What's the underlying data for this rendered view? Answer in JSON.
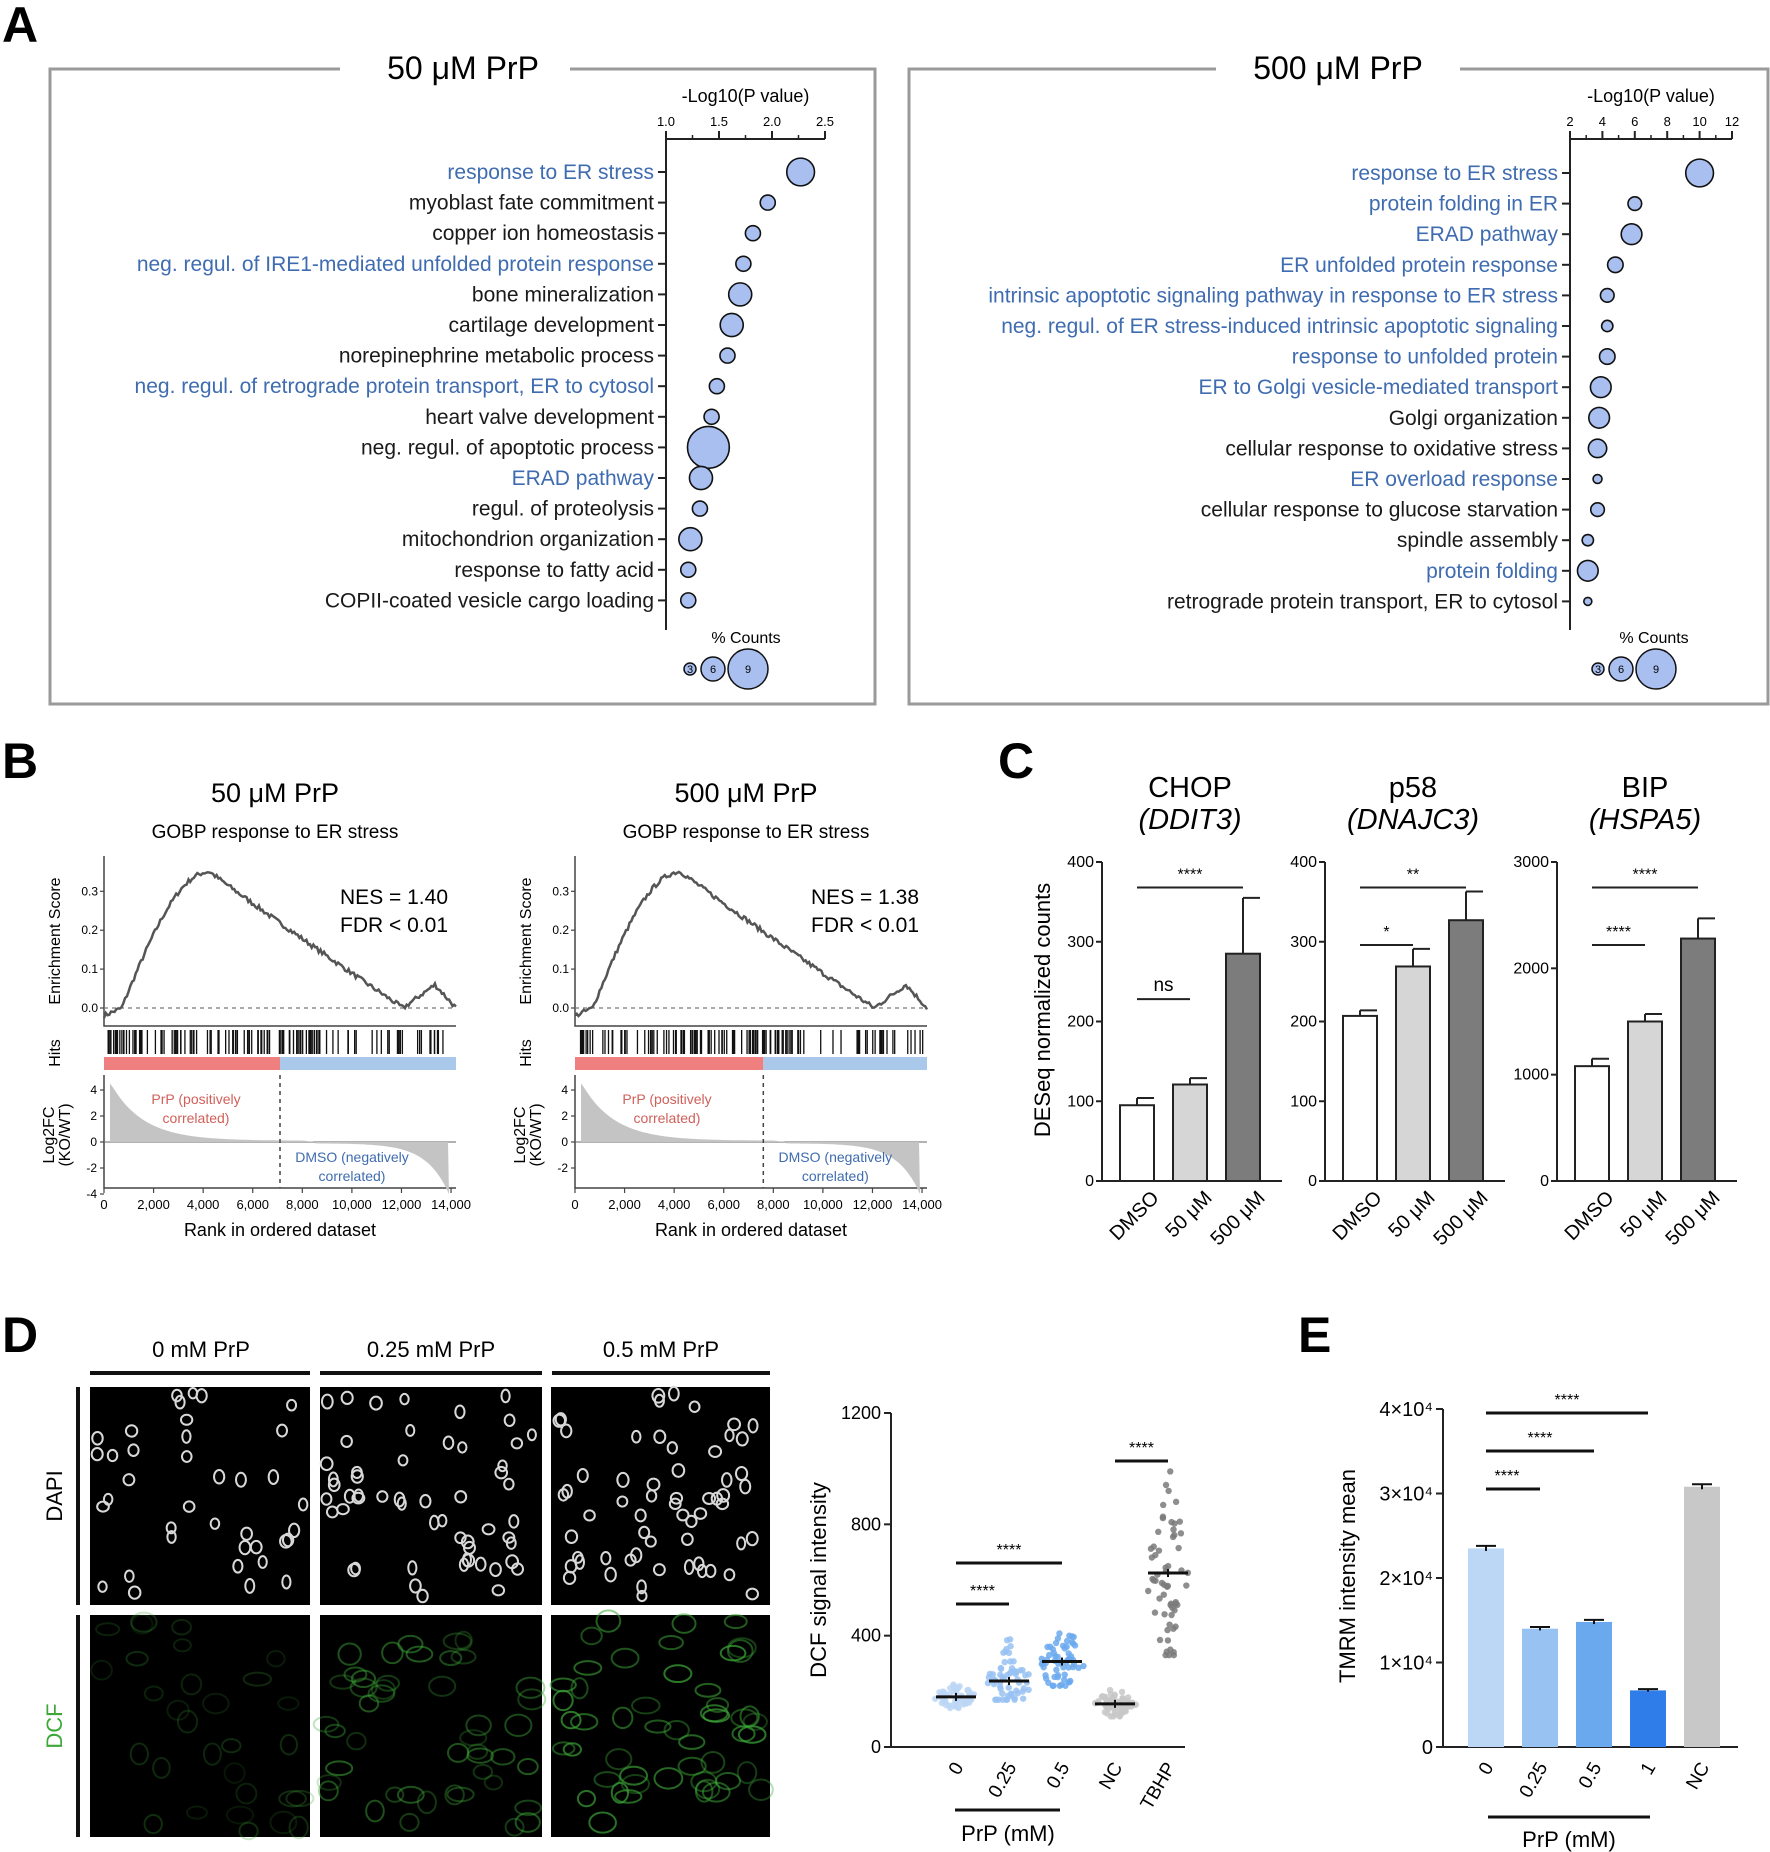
{
  "colors": {
    "blue_text": "#3f6cb0",
    "bubble": "#a9bff0",
    "pos_bar": "#f08080",
    "neg_bar": "#a9c8ea",
    "red_text": "#d0605a",
    "dcf": "#3da838",
    "light1": "#bcd6f5",
    "light2": "#98c2f2",
    "light3": "#6ba9ef",
    "strong": "#2e7de9",
    "grey": "#c8c8c8",
    "dark": "#7a7a7a"
  },
  "panel_labels": {
    "A": "A",
    "B": "B",
    "C": "C",
    "D": "D",
    "E": "E"
  },
  "panelA": {
    "left": {
      "title": "50 μM PrP",
      "axis_title": "-Log10(P value)",
      "ticks": [
        "1.0",
        "1.5",
        "2.0",
        "2.5"
      ],
      "legend_title": "% Counts",
      "legend_values": [
        "3",
        "6",
        "9"
      ]
    },
    "right": {
      "title": "500 μM PrP",
      "axis_title": "-Log10(P value)",
      "ticks": [
        "2",
        "4",
        "6",
        "8",
        "10",
        "12"
      ],
      "legend_title": "% Counts",
      "legend_values": [
        "3",
        "6",
        "9"
      ]
    }
  },
  "panelB": {
    "left": {
      "title": "50 μM PrP",
      "subtitle": "GOBP response to ER stress",
      "nes": "NES = 1.40",
      "fdr": "FDR < 0.01"
    },
    "right": {
      "title": "500 μM PrP",
      "subtitle": "GOBP response to ER stress",
      "nes": "NES = 1.38",
      "fdr": "FDR < 0.01"
    },
    "y_es": "Enrichment Score",
    "y_hits": "Hits",
    "y_fc_1": "Log2FC",
    "y_fc_2": "(KO/WT)",
    "es_ticks": [
      "0.3",
      "0.2",
      "0.1",
      "0.0"
    ],
    "fc_ticks": [
      "4",
      "2",
      "0",
      "-2",
      "-4"
    ],
    "fc_ticks_right": [
      "4",
      "2",
      "0",
      "-2"
    ],
    "x_ticks": [
      "0",
      "2,000",
      "4,000",
      "6,000",
      "8,000",
      "10,000",
      "12,000",
      "14,000"
    ],
    "xlabel": "Rank in ordered dataset",
    "pos_label_1": "PrP (positively",
    "pos_label_2": "correlated)",
    "neg_label_1": "DMSO (negatively",
    "neg_label_2": "correlated)"
  },
  "panelC": {
    "ylabel": "DESeq normalized counts",
    "categories": [
      "DMSO",
      "50 μM",
      "500 μM"
    ],
    "charts": [
      {
        "title1": "CHOP",
        "title2": "(DDIT3)",
        "ticks": [
          "0",
          "100",
          "200",
          "300",
          "400"
        ]
      },
      {
        "title1": "p58",
        "title2": "(DNAJC3)",
        "ticks": [
          "0",
          "100",
          "200",
          "300",
          "400"
        ]
      },
      {
        "title1": "BIP",
        "title2": "(HSPA5)",
        "ticks": [
          "0",
          "1000",
          "2000",
          "3000"
        ]
      }
    ]
  },
  "panelD": {
    "col_labels": [
      "0 mM PrP",
      "0.25 mM PrP",
      "0.5 mM PrP"
    ],
    "row_labels": [
      "DAPI",
      "DCF"
    ],
    "ylabel": "DCF signal intensity",
    "ticks": [
      "0",
      "400",
      "800",
      "1200"
    ],
    "categories": [
      "0",
      "0.25",
      "0.5",
      "NC",
      "TBHP"
    ],
    "group_label": "PrP (mM)"
  },
  "panelE": {
    "ylabel": "TMRM intensity mean",
    "ticks": [
      "0",
      "1×10⁴",
      "2×10⁴",
      "3×10⁴",
      "4×10⁴"
    ],
    "categories": [
      "0",
      "0.25",
      "0.5",
      "1",
      "NC"
    ],
    "group_label": "PrP (mM)"
  },
  "chart_data": [
    {
      "type": "scatter",
      "title": "50 μM PrP",
      "xlabel": "-Log10(P value)",
      "xlim": [
        1.0,
        2.5
      ],
      "size_label": "% Counts",
      "terms": [
        {
          "name": "response to ER stress",
          "x": 2.27,
          "count": 6.0,
          "er": true
        },
        {
          "name": "myoblast fate commitment",
          "x": 1.96,
          "count": 3.3,
          "er": false
        },
        {
          "name": "copper ion homeostasis",
          "x": 1.82,
          "count": 3.3,
          "er": false
        },
        {
          "name": "neg. regul. of IRE1-mediated unfolded protein response",
          "x": 1.73,
          "count": 3.3,
          "er": true
        },
        {
          "name": "bone mineralization",
          "x": 1.7,
          "count": 5.0,
          "er": false
        },
        {
          "name": "cartilage development",
          "x": 1.62,
          "count": 5.0,
          "er": false
        },
        {
          "name": "norepinephrine metabolic process",
          "x": 1.58,
          "count": 3.3,
          "er": false
        },
        {
          "name": "neg. regul. of retrograde protein transport, ER to cytosol",
          "x": 1.48,
          "count": 3.3,
          "er": true
        },
        {
          "name": "heart valve development",
          "x": 1.43,
          "count": 3.3,
          "er": false
        },
        {
          "name": "neg. regul. of apoptotic process",
          "x": 1.4,
          "count": 9.0,
          "er": false
        },
        {
          "name": "ERAD pathway",
          "x": 1.33,
          "count": 5.0,
          "er": true
        },
        {
          "name": "regul. of proteolysis",
          "x": 1.32,
          "count": 3.3,
          "er": false
        },
        {
          "name": "mitochondrion organization",
          "x": 1.23,
          "count": 5.0,
          "er": false
        },
        {
          "name": "response to fatty acid",
          "x": 1.21,
          "count": 3.3,
          "er": false
        },
        {
          "name": "COPII-coated vesicle cargo loading",
          "x": 1.21,
          "count": 3.3,
          "er": false
        }
      ]
    },
    {
      "type": "scatter",
      "title": "500 μM PrP",
      "xlabel": "-Log10(P value)",
      "xlim": [
        2,
        12
      ],
      "size_label": "% Counts",
      "terms": [
        {
          "name": "response to ER stress",
          "x": 10.0,
          "count": 6.0,
          "er": true
        },
        {
          "name": "protein folding in ER",
          "x": 6.0,
          "count": 3.0,
          "er": true
        },
        {
          "name": "ERAD pathway",
          "x": 5.8,
          "count": 4.5,
          "er": true
        },
        {
          "name": "ER unfolded protein response",
          "x": 4.8,
          "count": 3.4,
          "er": true
        },
        {
          "name": "intrinsic apoptotic signaling pathway in response to ER stress",
          "x": 4.3,
          "count": 3.0,
          "er": true
        },
        {
          "name": "neg. regul. of ER stress-induced intrinsic apoptotic signaling",
          "x": 4.3,
          "count": 2.5,
          "er": true
        },
        {
          "name": "response to unfolded protein",
          "x": 4.3,
          "count": 3.4,
          "er": true
        },
        {
          "name": "ER to Golgi vesicle-mediated transport",
          "x": 3.9,
          "count": 4.5,
          "er": true
        },
        {
          "name": "Golgi organization",
          "x": 3.8,
          "count": 4.5,
          "er": false
        },
        {
          "name": "cellular response to oxidative stress",
          "x": 3.7,
          "count": 4.0,
          "er": false
        },
        {
          "name": "ER overload response",
          "x": 3.7,
          "count": 2.0,
          "er": true
        },
        {
          "name": "cellular response to glucose starvation",
          "x": 3.7,
          "count": 3.0,
          "er": false
        },
        {
          "name": "spindle assembly",
          "x": 3.1,
          "count": 2.5,
          "er": false
        },
        {
          "name": "protein folding",
          "x": 3.1,
          "count": 4.5,
          "er": true
        },
        {
          "name": "retrograde protein transport, ER to cytosol",
          "x": 3.1,
          "count": 1.8,
          "er": false
        }
      ]
    },
    {
      "type": "bar",
      "title": "CHOP (DDIT3)",
      "ylabel": "DESeq normalized counts",
      "categories": [
        "DMSO",
        "50 μM",
        "500 μM"
      ],
      "values": [
        95,
        121,
        285
      ],
      "errors": [
        9,
        8,
        70
      ],
      "ylim": [
        0,
        400
      ],
      "significance": [
        {
          "from": 0,
          "to": 1,
          "label": "ns"
        },
        {
          "from": 0,
          "to": 2,
          "label": "****"
        }
      ]
    },
    {
      "type": "bar",
      "title": "p58 (DNAJC3)",
      "ylabel": "DESeq normalized counts",
      "categories": [
        "DMSO",
        "50 μM",
        "500 μM"
      ],
      "values": [
        207,
        269,
        327
      ],
      "errors": [
        7,
        22,
        36
      ],
      "ylim": [
        0,
        400
      ],
      "significance": [
        {
          "from": 0,
          "to": 1,
          "label": "*"
        },
        {
          "from": 0,
          "to": 2,
          "label": "**"
        }
      ]
    },
    {
      "type": "bar",
      "title": "BIP (HSPA5)",
      "ylabel": "DESeq normalized counts",
      "categories": [
        "DMSO",
        "50 μM",
        "500 μM"
      ],
      "values": [
        1080,
        1500,
        2280
      ],
      "errors": [
        70,
        70,
        190
      ],
      "ylim": [
        0,
        3000
      ],
      "significance": [
        {
          "from": 0,
          "to": 1,
          "label": "****"
        },
        {
          "from": 0,
          "to": 2,
          "label": "****"
        }
      ]
    },
    {
      "type": "scatter",
      "title": "DCF signal intensity",
      "ylabel": "DCF signal intensity",
      "categories": [
        "0",
        "0.25",
        "0.5",
        "NC",
        "TBHP"
      ],
      "means": [
        180,
        237,
        307,
        155,
        625
      ],
      "ranges": [
        [
          140,
          230
        ],
        [
          170,
          430
        ],
        [
          220,
          510
        ],
        [
          110,
          210
        ],
        [
          330,
          990
        ]
      ],
      "ylim": [
        0,
        1200
      ],
      "significance": [
        {
          "from": 0,
          "to": 1,
          "label": "****"
        },
        {
          "from": 0,
          "to": 2,
          "label": "****"
        },
        {
          "from": 3,
          "to": 4,
          "label": "****"
        }
      ]
    },
    {
      "type": "bar",
      "title": "TMRM intensity mean",
      "ylabel": "TMRM intensity mean",
      "categories": [
        "0",
        "0.25",
        "0.5",
        "1",
        "NC"
      ],
      "values": [
        23500,
        14000,
        14800,
        6700,
        30800
      ],
      "errors": [
        300,
        200,
        250,
        150,
        300
      ],
      "ylim": [
        0,
        40000
      ],
      "significance": [
        {
          "from": 0,
          "to": 1,
          "label": "****"
        },
        {
          "from": 0,
          "to": 2,
          "label": "****"
        },
        {
          "from": 0,
          "to": 3,
          "label": "****"
        }
      ]
    }
  ]
}
